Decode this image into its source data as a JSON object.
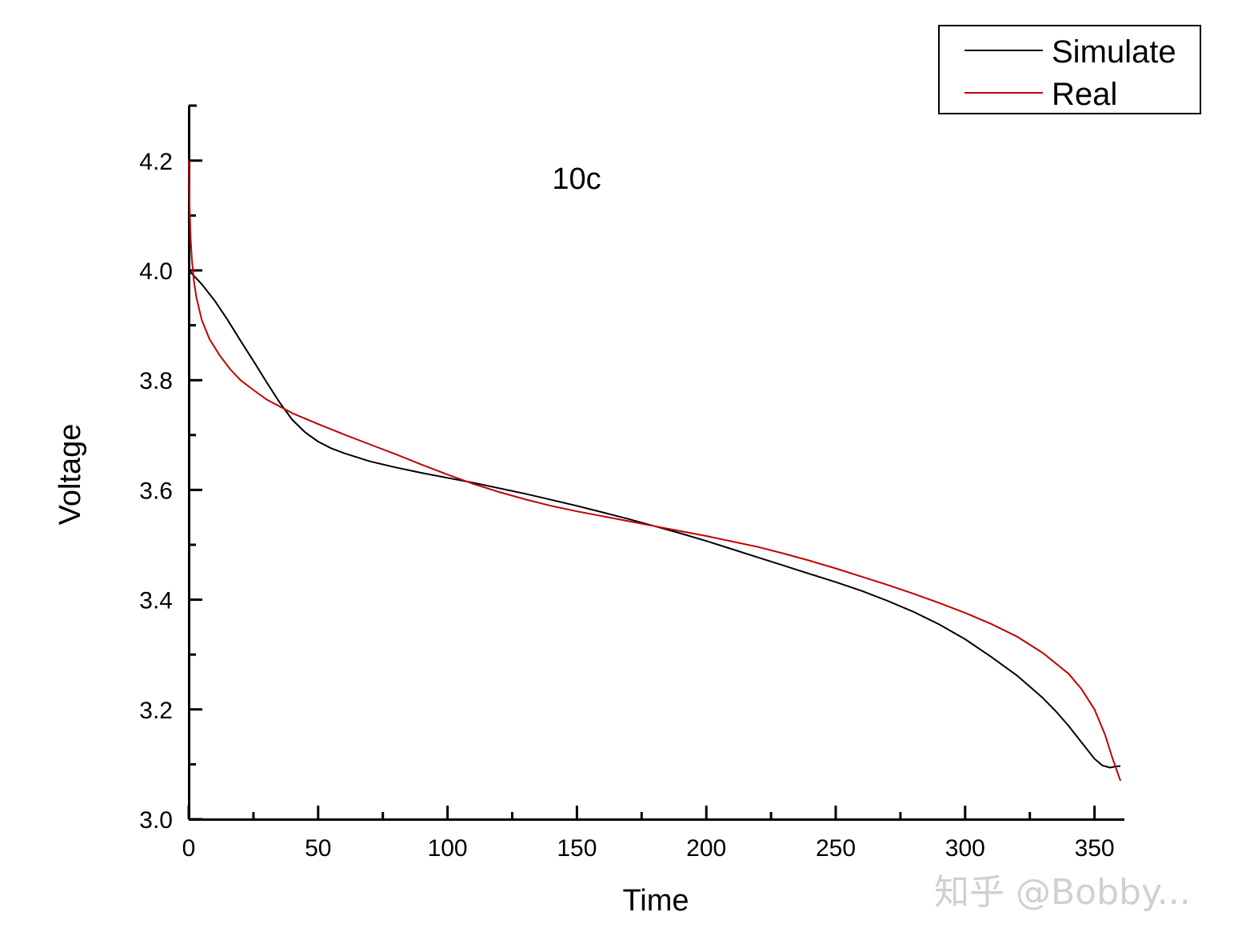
{
  "chart_data": {
    "type": "line",
    "annotation": "10c",
    "xlabel": "Time",
    "ylabel": "Voltage",
    "xlim": [
      0,
      362
    ],
    "ylim": [
      3.0,
      4.3
    ],
    "xticks": [
      "0",
      "50",
      "100",
      "150",
      "200",
      "250",
      "300",
      "350"
    ],
    "yticks": [
      "3.0",
      "3.2",
      "3.4",
      "3.6",
      "3.8",
      "4.0",
      "4.2"
    ],
    "legend_position": "top-right",
    "series": [
      {
        "name": "Simulate",
        "color": "#000000",
        "x": [
          0,
          5,
          10,
          15,
          20,
          25,
          30,
          35,
          40,
          45,
          50,
          55,
          60,
          70,
          80,
          90,
          100,
          110,
          120,
          130,
          140,
          150,
          160,
          170,
          180,
          190,
          200,
          210,
          220,
          230,
          240,
          250,
          260,
          270,
          280,
          290,
          300,
          310,
          320,
          330,
          335,
          340,
          345,
          350,
          353,
          356,
          358,
          360
        ],
        "y": [
          4.0,
          3.975,
          3.945,
          3.91,
          3.872,
          3.835,
          3.797,
          3.76,
          3.728,
          3.705,
          3.688,
          3.676,
          3.667,
          3.652,
          3.641,
          3.631,
          3.622,
          3.613,
          3.603,
          3.593,
          3.582,
          3.571,
          3.559,
          3.547,
          3.534,
          3.521,
          3.507,
          3.492,
          3.477,
          3.462,
          3.447,
          3.432,
          3.416,
          3.398,
          3.378,
          3.355,
          3.328,
          3.296,
          3.262,
          3.221,
          3.197,
          3.17,
          3.14,
          3.11,
          3.098,
          3.094,
          3.096,
          3.097
        ]
      },
      {
        "name": "Real",
        "color": "#c00000",
        "x": [
          0,
          0.3,
          0.7,
          1.2,
          2,
          3,
          5,
          8,
          12,
          16,
          20,
          25,
          30,
          40,
          50,
          60,
          70,
          80,
          90,
          100,
          110,
          120,
          130,
          140,
          150,
          160,
          170,
          180,
          190,
          200,
          210,
          220,
          230,
          240,
          250,
          260,
          270,
          280,
          290,
          300,
          310,
          320,
          330,
          340,
          345,
          350,
          354,
          357,
          360
        ],
        "y": [
          4.2,
          4.12,
          4.06,
          4.02,
          3.98,
          3.95,
          3.91,
          3.875,
          3.845,
          3.82,
          3.8,
          3.782,
          3.765,
          3.74,
          3.72,
          3.701,
          3.683,
          3.665,
          3.646,
          3.628,
          3.611,
          3.596,
          3.583,
          3.571,
          3.561,
          3.552,
          3.543,
          3.534,
          3.525,
          3.516,
          3.506,
          3.496,
          3.484,
          3.471,
          3.457,
          3.442,
          3.427,
          3.411,
          3.394,
          3.376,
          3.356,
          3.333,
          3.303,
          3.265,
          3.237,
          3.2,
          3.155,
          3.11,
          3.07
        ]
      }
    ]
  },
  "watermark": "知乎 @Bobby..."
}
